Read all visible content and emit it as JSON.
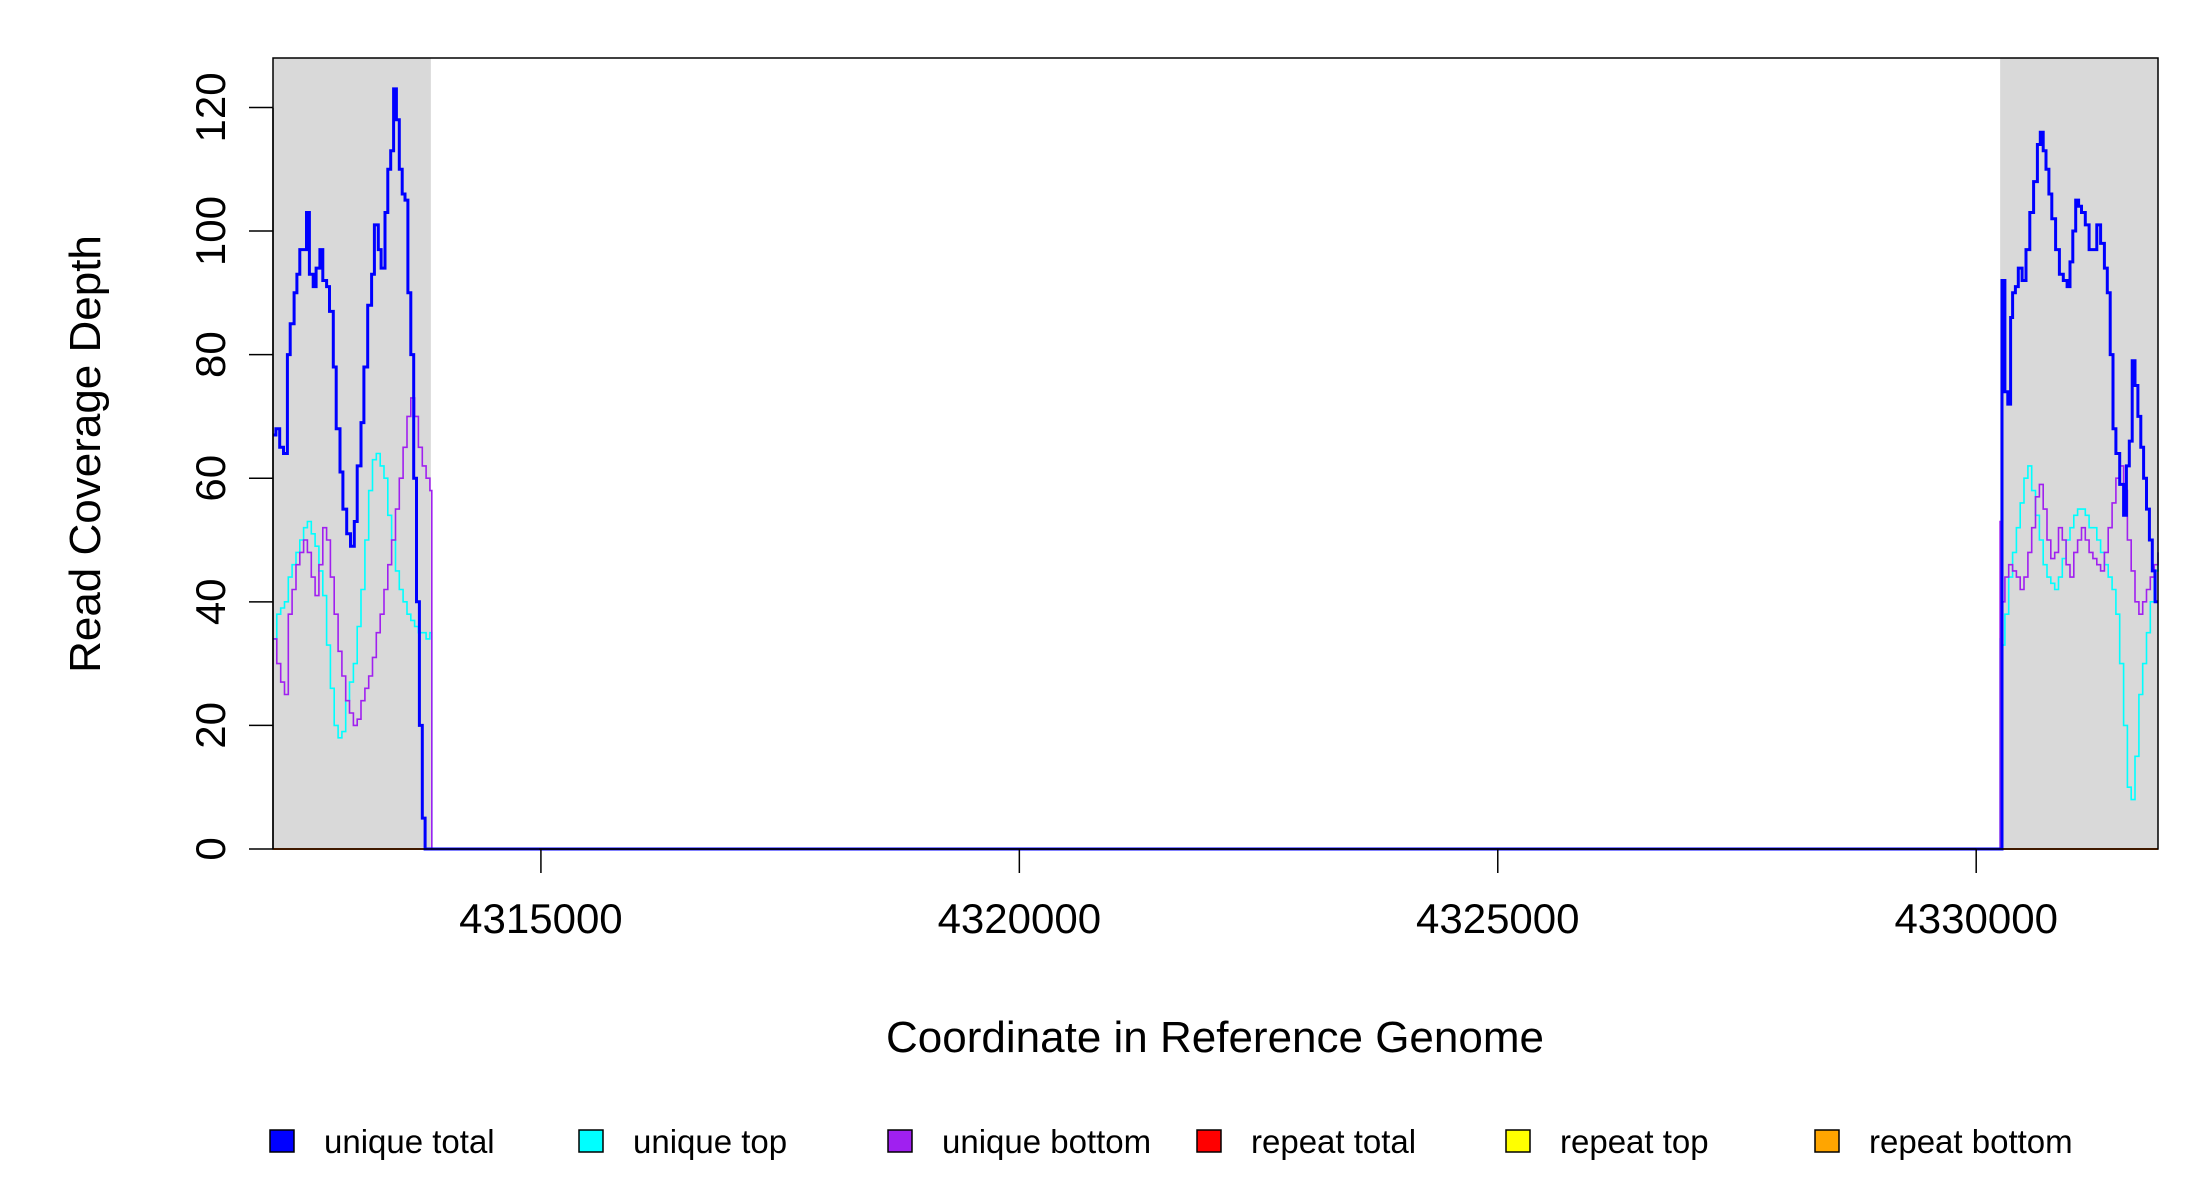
{
  "chart_data": {
    "type": "line",
    "title": "",
    "xlabel": "Coordinate in Reference Genome",
    "ylabel": "Read Coverage Depth",
    "xlim": [
      4312200,
      4331900
    ],
    "ylim": [
      0,
      128
    ],
    "x_ticks": [
      4315000,
      4320000,
      4325000,
      4330000
    ],
    "x_tick_labels": [
      "4315000",
      "4320000",
      "4325000",
      "4330000"
    ],
    "y_ticks": [
      0,
      20,
      40,
      60,
      80,
      100,
      120
    ],
    "y_tick_labels": [
      "0",
      "20",
      "40",
      "60",
      "80",
      "100",
      "120"
    ],
    "shaded_regions": [
      {
        "x0": 4312200,
        "x1": 4313850,
        "color": "#d9d9d9"
      },
      {
        "x0": 4330250,
        "x1": 4331900,
        "color": "#d9d9d9"
      }
    ],
    "legend": {
      "position": "bottom",
      "entries": [
        {
          "label": "unique total",
          "color": "#0000ff"
        },
        {
          "label": "unique top",
          "color": "#00ffff"
        },
        {
          "label": "unique bottom",
          "color": "#a020f0"
        },
        {
          "label": "repeat total",
          "color": "#ff0000"
        },
        {
          "label": "repeat top",
          "color": "#ffff00"
        },
        {
          "label": "repeat bottom",
          "color": "#ffa500"
        }
      ]
    },
    "series": [
      {
        "name": "unique total",
        "color": "#0000ff",
        "width": 3,
        "x": [
          4312200,
          4312230,
          4312270,
          4312310,
          4312350,
          4312380,
          4312420,
          4312450,
          4312480,
          4312510,
          4312550,
          4312580,
          4312620,
          4312650,
          4312690,
          4312720,
          4312760,
          4312790,
          4312830,
          4312860,
          4312900,
          4312930,
          4312970,
          4313010,
          4313050,
          4313080,
          4313120,
          4313150,
          4313190,
          4313230,
          4313260,
          4313300,
          4313330,
          4313370,
          4313400,
          4313430,
          4313460,
          4313490,
          4313520,
          4313550,
          4313580,
          4313610,
          4313640,
          4313670,
          4313700,
          4313730,
          4313760,
          4313790,
          4313820,
          4313840,
          4313860,
          4313870,
          4314000,
          4330200,
          4330240,
          4330250,
          4330270,
          4330300,
          4330330,
          4330360,
          4330380,
          4330410,
          4330440,
          4330480,
          4330520,
          4330560,
          4330600,
          4330640,
          4330670,
          4330700,
          4330730,
          4330760,
          4330790,
          4330830,
          4330870,
          4330910,
          4330950,
          4330980,
          4331010,
          4331040,
          4331070,
          4331100,
          4331140,
          4331180,
          4331220,
          4331260,
          4331300,
          4331340,
          4331370,
          4331400,
          4331430,
          4331460,
          4331500,
          4331540,
          4331570,
          4331600,
          4331630,
          4331660,
          4331690,
          4331720,
          4331750,
          4331780,
          4331810,
          4331840,
          4331870,
          4331900
        ],
        "y": [
          67,
          68,
          65,
          64,
          80,
          85,
          90,
          93,
          97,
          97,
          103,
          93,
          91,
          94,
          97,
          92,
          91,
          87,
          78,
          68,
          61,
          55,
          51,
          49,
          53,
          62,
          69,
          78,
          88,
          93,
          101,
          97,
          94,
          103,
          110,
          113,
          123,
          118,
          110,
          106,
          105,
          90,
          80,
          60,
          40,
          20,
          5,
          0,
          0,
          0,
          0,
          0,
          0,
          0,
          0,
          0,
          92,
          74,
          72,
          86,
          90,
          91,
          94,
          92,
          97,
          103,
          108,
          114,
          116,
          113,
          110,
          106,
          102,
          97,
          93,
          92,
          91,
          95,
          100,
          105,
          104,
          103,
          101,
          97,
          97,
          101,
          98,
          94,
          90,
          80,
          68,
          64,
          59,
          54,
          62,
          66,
          79,
          75,
          70,
          65,
          60,
          55,
          50,
          45,
          40,
          40
        ]
      },
      {
        "name": "unique top",
        "color": "#00ffff",
        "width": 1.6,
        "x": [
          4312200,
          4312240,
          4312280,
          4312320,
          4312360,
          4312400,
          4312440,
          4312480,
          4312520,
          4312560,
          4312600,
          4312640,
          4312680,
          4312720,
          4312760,
          4312800,
          4312840,
          4312880,
          4312920,
          4312960,
          4313000,
          4313040,
          4313080,
          4313120,
          4313160,
          4313200,
          4313240,
          4313280,
          4313320,
          4313360,
          4313400,
          4313440,
          4313480,
          4313520,
          4313560,
          4313600,
          4313640,
          4313680,
          4313720,
          4313760,
          4313800,
          4313840,
          4313860,
          4313870,
          4314000,
          4330200,
          4330250,
          4330270,
          4330300,
          4330340,
          4330380,
          4330420,
          4330460,
          4330500,
          4330540,
          4330580,
          4330620,
          4330660,
          4330700,
          4330740,
          4330780,
          4330820,
          4330860,
          4330900,
          4330940,
          4330980,
          4331020,
          4331060,
          4331100,
          4331140,
          4331180,
          4331220,
          4331260,
          4331300,
          4331340,
          4331380,
          4331420,
          4331460,
          4331500,
          4331540,
          4331580,
          4331620,
          4331660,
          4331700,
          4331740,
          4331780,
          4331820,
          4331860,
          4331900
        ],
        "y": [
          34,
          38,
          39,
          40,
          44,
          46,
          48,
          50,
          52,
          53,
          51,
          49,
          45,
          41,
          33,
          26,
          20,
          18,
          19,
          24,
          27,
          30,
          36,
          42,
          50,
          58,
          63,
          64,
          62,
          60,
          54,
          50,
          45,
          42,
          40,
          38,
          37,
          36,
          35,
          35,
          34,
          35,
          0,
          0,
          0,
          0,
          34,
          33,
          38,
          44,
          48,
          52,
          56,
          60,
          62,
          58,
          54,
          50,
          46,
          44,
          43,
          42,
          44,
          47,
          50,
          52,
          54,
          55,
          55,
          54,
          52,
          52,
          50,
          48,
          46,
          44,
          42,
          38,
          30,
          20,
          10,
          8,
          15,
          25,
          30,
          35,
          40,
          45,
          48
        ]
      },
      {
        "name": "unique bottom",
        "color": "#a020f0",
        "width": 1.6,
        "x": [
          4312200,
          4312240,
          4312280,
          4312320,
          4312360,
          4312400,
          4312440,
          4312480,
          4312520,
          4312560,
          4312600,
          4312640,
          4312680,
          4312720,
          4312760,
          4312800,
          4312840,
          4312880,
          4312920,
          4312960,
          4313000,
          4313040,
          4313080,
          4313120,
          4313160,
          4313200,
          4313240,
          4313280,
          4313320,
          4313360,
          4313400,
          4313440,
          4313480,
          4313520,
          4313560,
          4313600,
          4313640,
          4313680,
          4313720,
          4313760,
          4313800,
          4313840,
          4313860,
          4313870,
          4314000,
          4330200,
          4330250,
          4330270,
          4330300,
          4330340,
          4330380,
          4330420,
          4330460,
          4330500,
          4330540,
          4330580,
          4330620,
          4330660,
          4330700,
          4330740,
          4330780,
          4330820,
          4330860,
          4330900,
          4330940,
          4330980,
          4331020,
          4331060,
          4331100,
          4331140,
          4331180,
          4331220,
          4331260,
          4331300,
          4331340,
          4331380,
          4331420,
          4331460,
          4331500,
          4331540,
          4331580,
          4331620,
          4331660,
          4331700,
          4331740,
          4331780,
          4331820,
          4331860,
          4331900
        ],
        "y": [
          34,
          30,
          27,
          25,
          38,
          42,
          46,
          48,
          50,
          48,
          44,
          41,
          46,
          52,
          50,
          44,
          38,
          32,
          28,
          24,
          22,
          20,
          21,
          24,
          26,
          28,
          31,
          35,
          38,
          42,
          46,
          50,
          55,
          60,
          65,
          70,
          73,
          70,
          65,
          62,
          60,
          58,
          0,
          0,
          0,
          0,
          53,
          40,
          44,
          46,
          45,
          44,
          42,
          44,
          48,
          52,
          57,
          59,
          55,
          50,
          47,
          48,
          52,
          50,
          46,
          44,
          48,
          50,
          52,
          50,
          48,
          47,
          46,
          45,
          48,
          52,
          56,
          60,
          62,
          58,
          50,
          45,
          40,
          38,
          40,
          42,
          44,
          46,
          48
        ]
      },
      {
        "name": "repeat total",
        "color": "#ff0000",
        "width": 1.6,
        "x": [
          4312200,
          4331900
        ],
        "y": [
          0,
          0
        ]
      },
      {
        "name": "repeat top",
        "color": "#ffff00",
        "width": 1.6,
        "x": [
          4312200,
          4331900
        ],
        "y": [
          0,
          0
        ]
      },
      {
        "name": "repeat bottom",
        "color": "#ffa500",
        "width": 2,
        "x": [
          4312200,
          4313870,
          4330250,
          4331900
        ],
        "y": [
          0,
          0,
          0,
          0
        ]
      }
    ]
  }
}
